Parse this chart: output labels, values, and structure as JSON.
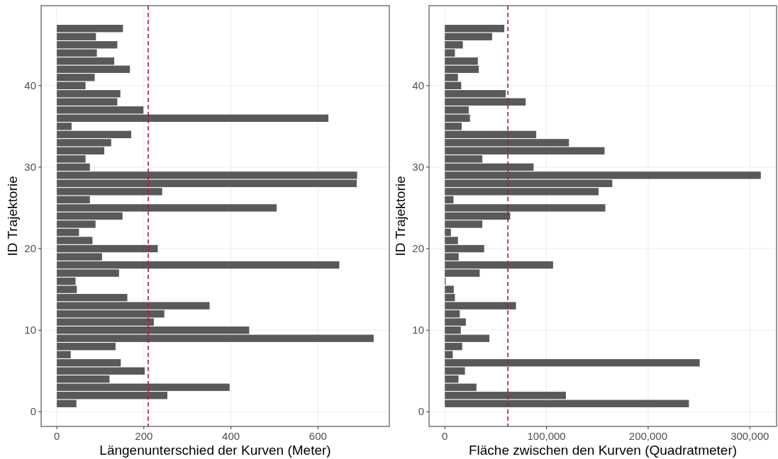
{
  "chart_data": [
    {
      "type": "bar",
      "orientation": "horizontal",
      "xlabel": "Längenunterschied der Kurven (Meter)",
      "ylabel": "ID Trajektorie",
      "x": [
        1,
        2,
        3,
        4,
        5,
        6,
        7,
        8,
        9,
        10,
        11,
        12,
        13,
        14,
        15,
        16,
        17,
        18,
        19,
        20,
        21,
        22,
        23,
        24,
        25,
        26,
        27,
        28,
        29,
        30,
        31,
        32,
        33,
        34,
        35,
        36,
        37,
        38,
        39,
        40,
        41,
        42,
        43,
        44,
        45,
        46,
        47
      ],
      "values": [
        45,
        254,
        397,
        121,
        202,
        147,
        32,
        135,
        728,
        442,
        223,
        247,
        351,
        162,
        46,
        43,
        143,
        649,
        104,
        232,
        82,
        51,
        89,
        151,
        505,
        76,
        242,
        689,
        690,
        76,
        66,
        109,
        125,
        171,
        34,
        624,
        199,
        139,
        146,
        66,
        87,
        168,
        132,
        92,
        139,
        90,
        152
      ],
      "color": "#595959",
      "xlim": [
        -36,
        764
      ],
      "xticks": [
        0,
        200,
        400,
        600
      ],
      "ylim": [
        -1.8,
        49.8
      ],
      "yticks": [
        0,
        10,
        20,
        30,
        40
      ],
      "grid": true,
      "ref_lines": [
        {
          "axis": "x",
          "value": 210,
          "color": "#b2182b",
          "line_style": "dashed"
        }
      ]
    },
    {
      "type": "bar",
      "orientation": "horizontal",
      "xlabel": "Fläche zwischen den Kurven (Quadratmeter)",
      "ylabel": "ID Trajektorie",
      "x": [
        1,
        2,
        3,
        4,
        5,
        6,
        7,
        8,
        9,
        10,
        11,
        12,
        13,
        14,
        15,
        16,
        17,
        18,
        19,
        20,
        21,
        22,
        23,
        24,
        25,
        26,
        27,
        28,
        29,
        30,
        31,
        32,
        33,
        34,
        35,
        36,
        37,
        38,
        39,
        40,
        41,
        42,
        43,
        44,
        45,
        46,
        47
      ],
      "values": [
        240100,
        119100,
        31100,
        13400,
        19800,
        250700,
        7800,
        17100,
        43800,
        15700,
        20700,
        14700,
        70000,
        9900,
        8800,
        900,
        34300,
        106500,
        13600,
        38700,
        12900,
        6000,
        36900,
        64300,
        157800,
        8500,
        151200,
        164700,
        310800,
        87300,
        36900,
        157100,
        122100,
        89900,
        16600,
        24700,
        23500,
        79500,
        59900,
        16100,
        12900,
        33400,
        32500,
        9900,
        17700,
        46500,
        58500
      ],
      "color": "#595959",
      "xlim": [
        -15500,
        326300
      ],
      "xticks": [
        0,
        {
          "value": 100000,
          "label": "100,000"
        },
        {
          "value": 200000,
          "label": "200,000"
        },
        {
          "value": 300000,
          "label": "300,000"
        }
      ],
      "ylim": [
        -1.8,
        49.8
      ],
      "yticks": [
        0,
        10,
        20,
        30,
        40
      ],
      "grid": true,
      "ref_lines": [
        {
          "axis": "x",
          "value": 62000,
          "color": "#b2182b",
          "line_style": "dashed"
        }
      ]
    }
  ]
}
